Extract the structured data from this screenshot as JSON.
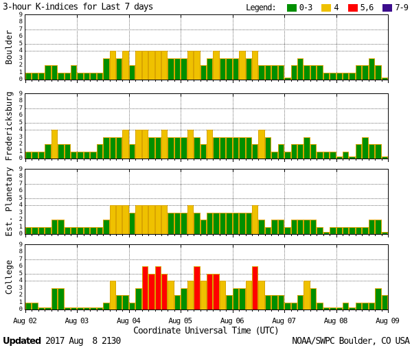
{
  "title": "3-hour K-indices for Last 7 days",
  "legend": {
    "label": "Legend:",
    "items": [
      {
        "label": "0-3",
        "color": "#008f00"
      },
      {
        "label": "4",
        "color": "#efc100"
      },
      {
        "label": "5,6",
        "color": "#ff0000"
      },
      {
        "label": "7-9",
        "color": "#3c0d8d"
      }
    ]
  },
  "x_axis": {
    "tick_labels": [
      "Aug 02",
      "Aug 03",
      "Aug 04",
      "Aug 05",
      "Aug 06",
      "Aug 07",
      "Aug 08",
      "Aug 09"
    ],
    "title": "Coordinate Universal Time (UTC)"
  },
  "y_axis": {
    "ticks": [
      9,
      8,
      7,
      6,
      5,
      4,
      3,
      2,
      1,
      0
    ],
    "gridline_levels": [
      4,
      5,
      7
    ]
  },
  "footer": {
    "updated_label": "Updated",
    "updated_value": " 2017 Aug  8 2130",
    "source": "NOAA/SWPC Boulder, CO USA"
  },
  "chart_data": {
    "type": "bar",
    "title": "3-hour K-indices for Last 7 days",
    "x": "time (3-hour K intervals, Aug 02 - Aug 09 UTC)",
    "ylim": [
      0,
      9
    ],
    "bars_per_day": 8,
    "days": [
      "Aug 02",
      "Aug 03",
      "Aug 04",
      "Aug 05",
      "Aug 06",
      "Aug 07",
      "Aug 08"
    ],
    "color_rules": [
      {
        "range": "0-3",
        "color": "#008f00"
      },
      {
        "range": "4",
        "color": "#efc100"
      },
      {
        "range": "5-6",
        "color": "#ff0000"
      },
      {
        "range": "7-9",
        "color": "#3c0d8d"
      }
    ],
    "series": [
      {
        "name": "Boulder",
        "values": [
          1,
          1,
          1,
          2,
          2,
          1,
          1,
          2,
          1,
          1,
          1,
          1,
          3,
          4,
          3,
          4,
          2,
          4,
          4,
          4,
          4,
          4,
          3,
          3,
          3,
          4,
          4,
          2,
          3,
          4,
          3,
          3,
          3,
          4,
          3,
          4,
          2,
          2,
          2,
          2,
          0,
          2,
          3,
          2,
          2,
          2,
          1,
          1,
          1,
          1,
          1,
          2,
          2,
          3,
          2,
          0
        ]
      },
      {
        "name": "Fredericksburg",
        "values": [
          1,
          1,
          1,
          2,
          4,
          2,
          2,
          1,
          1,
          1,
          1,
          2,
          3,
          3,
          3,
          4,
          2,
          4,
          4,
          3,
          3,
          4,
          3,
          3,
          3,
          4,
          3,
          2,
          4,
          3,
          3,
          3,
          3,
          3,
          3,
          2,
          4,
          3,
          1,
          2,
          1,
          2,
          2,
          3,
          2,
          1,
          1,
          1,
          0,
          1,
          0,
          2,
          3,
          2,
          2,
          0
        ]
      },
      {
        "name": "Est. Planetary",
        "values": [
          1,
          1,
          1,
          1,
          2,
          2,
          1,
          1,
          1,
          1,
          1,
          1,
          2,
          4,
          4,
          4,
          3,
          4,
          4,
          4,
          4,
          4,
          3,
          3,
          3,
          4,
          3,
          2,
          3,
          3,
          3,
          3,
          3,
          3,
          3,
          4,
          2,
          1,
          2,
          2,
          1,
          2,
          2,
          2,
          2,
          1,
          0,
          1,
          1,
          1,
          1,
          1,
          1,
          2,
          2,
          0
        ]
      },
      {
        "name": "College",
        "values": [
          1,
          1,
          0,
          0,
          3,
          3,
          0,
          0,
          0,
          0,
          0,
          0,
          1,
          4,
          2,
          2,
          1,
          3,
          6,
          5,
          6,
          5,
          4,
          2,
          3,
          4,
          6,
          4,
          5,
          5,
          4,
          2,
          3,
          3,
          4,
          6,
          4,
          2,
          2,
          2,
          1,
          1,
          2,
          4,
          3,
          1,
          0,
          0,
          0,
          1,
          0,
          1,
          1,
          1,
          3,
          2
        ]
      }
    ]
  }
}
